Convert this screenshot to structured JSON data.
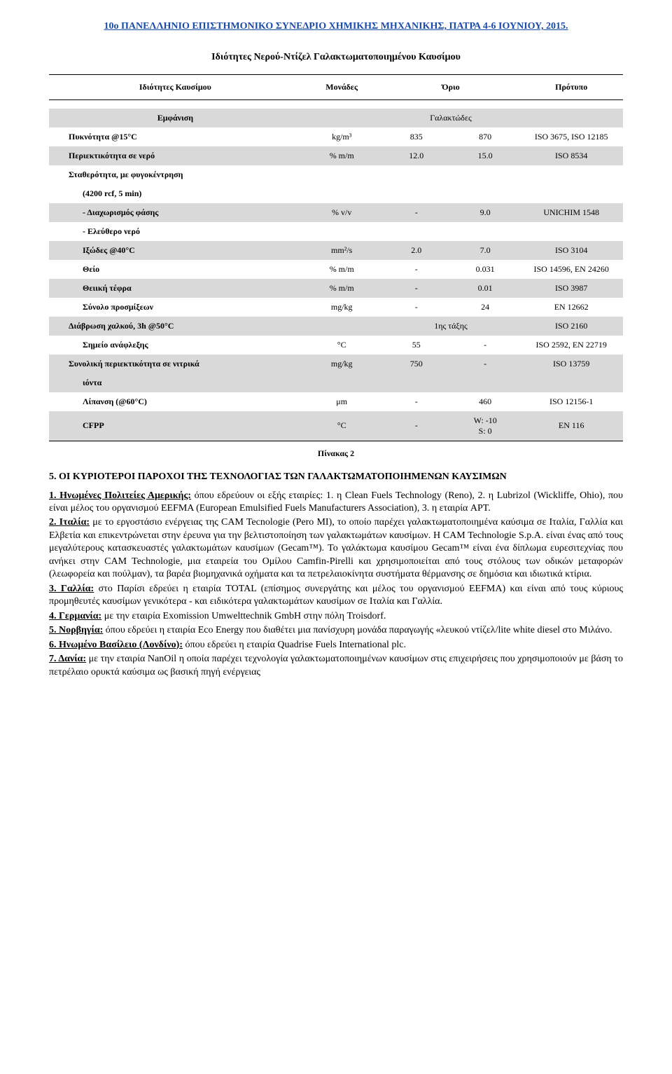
{
  "header": "10ο ΠΑΝΕΛΛΗΝΙΟ ΕΠΙΣΤΗΜΟΝΙΚΟ ΣΥΝΕΔΡΙΟ ΧΗΜΙΚΗΣ ΜΗΧΑΝΙΚΗΣ, ΠΑΤΡΑ 4-6 ΙΟΥΝΙΟΥ, 2015.",
  "tableTitle": "Ιδιότητες Νερού-Ντίζελ Γαλακτωματοποιημένου Καυσίμου",
  "columns": {
    "c1": "Ιδιότητες Καυσίμου",
    "c2": "Μονάδες",
    "c3": "Όριο",
    "c5": "Πρότυπο"
  },
  "rows": {
    "appearance": {
      "lbl": "Εμφάνιση",
      "val": "Γαλακτώδες"
    },
    "density": {
      "lbl": "Πυκνότητα @15°C",
      "unit": "kg/m³",
      "v1": "835",
      "v2": "870",
      "std": "ISO 3675, ISO 12185"
    },
    "water": {
      "lbl": "Περιεκτικότητα σε νερό",
      "unit": "% m/m",
      "v1": "12.0",
      "v2": "15.0",
      "std": "ISO 8534"
    },
    "stability_l1": "Σταθερότητα, με φυγοκέντρηση",
    "stability_l2": "(4200 rcf, 5 min)",
    "phase": {
      "lbl": "- Διαχωρισμός φάσης",
      "unit": "% v/v",
      "v1": "-",
      "v2": "9.0",
      "std": "UNICHIM 1548"
    },
    "freewater": "- Ελεύθερο νερό",
    "visc": {
      "lbl": "Ιξώδες @40°C",
      "unit": "mm²/s",
      "v1": "2.0",
      "v2": "7.0",
      "std": "ISO 3104"
    },
    "sulfur": {
      "lbl": "Θείο",
      "unit": "% m/m",
      "v1": "-",
      "v2": "0.031",
      "std": "ISO 14596, EN 24260"
    },
    "sulfash": {
      "lbl": "Θειική τέφρα",
      "unit": "% m/m",
      "v1": "-",
      "v2": "0.01",
      "std": "ISO 3987"
    },
    "additives": {
      "lbl": "Σύνολο προσμίξεων",
      "unit": "mg/kg",
      "v1": "-",
      "v2": "24",
      "std": "EN 12662"
    },
    "copper": {
      "lbl": "Διάβρωση χαλκού, 3h @50°C",
      "v1": "1ης τάξης",
      "std": "ISO 2160"
    },
    "flash": {
      "lbl": "Σημείο ανάφλεξης",
      "unit": "°C",
      "v1": "55",
      "v2": "-",
      "std": "ISO 2592, EN 22719"
    },
    "nit_l1": "Συνολική περιεκτικότητα σε νιτρικά",
    "nit_l2": "ιόντα",
    "nit_unit": "mg/kg",
    "nit_v1": "750",
    "nit_v2": "-",
    "nit_std": "ISO 13759",
    "lubr": {
      "lbl": "Λίπανση (@60°C)",
      "unit": "μm",
      "v1": "-",
      "v2": "460",
      "std": "ISO 12156-1"
    },
    "cfpp": {
      "lbl": "CFPP",
      "unit": "°C",
      "v1": "-",
      "v2_a": "W: -10",
      "v2_b": "S: 0",
      "std": "EN 116"
    }
  },
  "caption": "Πίνακας 2",
  "sectionTitle": "5. ΟΙ ΚΥΡΙΟΤΕΡΟΙ ΠΑΡΟΧΟΙ ΤΗΣ ΤΕΧΝΟΛΟΓΙΑΣ ΤΩΝ ΓΑΛΑΚΤΩΜΑΤΟΠΟΙΗΜΕΝΩΝ ΚΑΥΣΙΜΩΝ",
  "p1_lead": "1. Ηνωμένες Πολιτείες Αμερικής:",
  "p1_rest": " όπου εδρεύουν οι εξής εταιρίες: 1. η Clean Fuels Technology (Reno), 2. η Lubrizol (Wickliffe, Ohio), που είναι μέλος του οργανισμού EEFMA (European Emulsified Fuels Manufacturers Association), 3. η εταιρία APT.",
  "p2_lead": "2. Ιταλία:",
  "p2_rest": " με το εργοστάσιο ενέργειας της CAM Tecnologie (Pero MI), το οποίο παρέχει γαλακτωματοποιημένα καύσιμα σε Ιταλία, Γαλλία και Ελβετία και επικεντρώνεται στην έρευνα για την βελτιστοποίηση των γαλακτωμάτων καυσίμων. Η CAM Technologie S.p.A. είναι ένας από τους μεγαλύτερους κατασκευαστές γαλακτωμάτων καυσίμων (Gecam™). Το γαλάκτωμα καυσίμου Gecam™ είναι ένα δίπλωμα ευρεσιτεχνίας που ανήκει στην CAM Technologie, μια εταιρεία του Ομίλου Camfin-Pirelli και χρησιμοποιείται από τους στόλους των οδικών μεταφορών (λεωφορεία και πούλμαν), τα βαρέα βιομηχανικά οχήματα και τα πετρελαιοκίνητα συστήματα θέρμανσης σε δημόσια και ιδιωτικά κτίρια.",
  "p3_lead": "3. Γαλλία:",
  "p3_rest": " στο Παρίσι εδρεύει η εταιρία TOTAL (επίσημος συνεργάτης και μέλος του οργανισμού EEFMA) και είναι από τους κύριους προμηθευτές καυσίμων γενικότερα - και ειδικότερα γαλακτωμάτων καυσίμων σε Ιταλία και Γαλλία.",
  "p4_lead": "4. Γερμανία:",
  "p4_rest": " με την εταιρία Exomission Umwelttechnik GmbH στην πόλη Troisdorf.",
  "p5_lead": "5. Νορβηγία:",
  "p5_rest": " όπου εδρεύει η εταιρία Eco Energy που διαθέτει μια πανίσχυρη μονάδα παραγωγής «λευκού ντίζελ/lite white diesel στο Μιλάνο.",
  "p6_lead": "6. Ηνωμένο Βασίλειο (Λονδίνο):",
  "p6_rest": " όπου εδρεύει η εταιρία Quadrise Fuels International plc.",
  "p7_lead": "7. Δανία:",
  "p7_rest": " με την εταιρία NanOil η οποία παρέχει τεχνολογία γαλακτωματοποιημένων καυσίμων στις επιχειρήσεις που χρησιμοποιούν με βάση το πετρέλαιο ορυκτά καύσιμα ως βασική πηγή ενέργειας"
}
